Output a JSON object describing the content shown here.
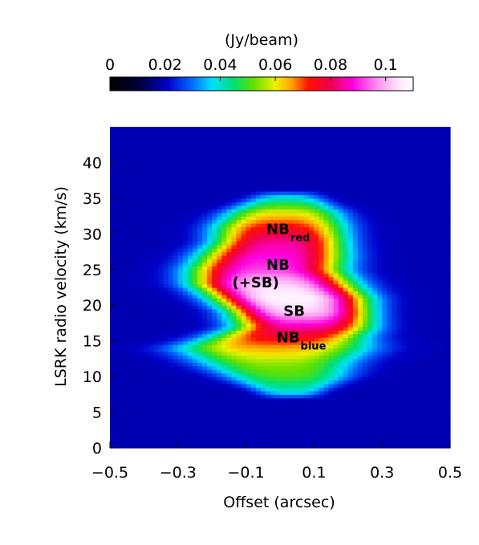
{
  "chart_data": {
    "type": "heatmap",
    "xlabel": "Offset (arcsec)",
    "ylabel": "LSRK radio velocity  (km/s)",
    "xlim": [
      -0.5,
      0.5
    ],
    "ylim": [
      0,
      45
    ],
    "x_ticks": [
      "−0.5",
      "−0.3",
      "−0.1",
      "0.1",
      "0.3",
      "0.5"
    ],
    "x_tick_values": [
      -0.5,
      -0.3,
      -0.1,
      0.1,
      0.3,
      0.5
    ],
    "y_ticks": [
      "0",
      "5",
      "10",
      "15",
      "20",
      "25",
      "30",
      "35",
      "40"
    ],
    "y_tick_values": [
      0,
      5,
      10,
      15,
      20,
      25,
      30,
      35,
      40
    ],
    "colorbar": {
      "title": "(Jy/beam)",
      "ticks": [
        "0",
        "0.02",
        "0.04",
        "0.06",
        "0.08",
        "0.1"
      ],
      "tick_values": [
        0,
        0.02,
        0.04,
        0.06,
        0.08,
        0.1
      ],
      "range": [
        0,
        0.11
      ],
      "colormap_stops": [
        {
          "v": 0.0,
          "color": "#000000"
        },
        {
          "v": 0.011,
          "color": "#00003c"
        },
        {
          "v": 0.021,
          "color": "#0000c8"
        },
        {
          "v": 0.029,
          "color": "#0060ff"
        },
        {
          "v": 0.037,
          "color": "#00e0ff"
        },
        {
          "v": 0.045,
          "color": "#00e070"
        },
        {
          "v": 0.052,
          "color": "#60e000"
        },
        {
          "v": 0.06,
          "color": "#f0f000"
        },
        {
          "v": 0.066,
          "color": "#ffa000"
        },
        {
          "v": 0.072,
          "color": "#ff1000"
        },
        {
          "v": 0.08,
          "color": "#f00050"
        },
        {
          "v": 0.088,
          "color": "#ff00e0"
        },
        {
          "v": 0.097,
          "color": "#ff90f0"
        },
        {
          "v": 0.105,
          "color": "#ffe8ff"
        },
        {
          "v": 0.11,
          "color": "#ffffff"
        }
      ]
    },
    "background_value": 0.0195,
    "emission_profile": [
      {
        "v": 8,
        "center": 0.03,
        "halfwidth": 0.04,
        "peak": 0.04
      },
      {
        "v": 10,
        "center": 0.02,
        "halfwidth": 0.12,
        "peak": 0.05
      },
      {
        "v": 12,
        "center": -0.01,
        "halfwidth": 0.17,
        "peak": 0.055
      },
      {
        "v": 14,
        "center": -0.02,
        "halfwidth": 0.22,
        "peak": 0.065
      },
      {
        "v": 15.5,
        "center": 0.02,
        "halfwidth": 0.17,
        "peak": 0.075
      },
      {
        "v": 17,
        "center": 0.07,
        "halfwidth": 0.14,
        "peak": 0.085
      },
      {
        "v": 19,
        "center": 0.06,
        "halfwidth": 0.14,
        "peak": 0.102
      },
      {
        "v": 21,
        "center": 0.03,
        "halfwidth": 0.16,
        "peak": 0.108
      },
      {
        "v": 23,
        "center": -0.02,
        "halfwidth": 0.17,
        "peak": 0.103
      },
      {
        "v": 25,
        "center": -0.04,
        "halfwidth": 0.16,
        "peak": 0.092
      },
      {
        "v": 27,
        "center": -0.02,
        "halfwidth": 0.15,
        "peak": 0.088
      },
      {
        "v": 29,
        "center": 0.0,
        "halfwidth": 0.13,
        "peak": 0.084
      },
      {
        "v": 31,
        "center": 0.0,
        "halfwidth": 0.13,
        "peak": 0.074
      },
      {
        "v": 33,
        "center": 0.01,
        "halfwidth": 0.11,
        "peak": 0.06
      },
      {
        "v": 35,
        "center": 0.02,
        "halfwidth": 0.05,
        "peak": 0.04
      }
    ],
    "annotations": [
      {
        "text": "NB",
        "sub": "red",
        "x": -0.04,
        "y": 30
      },
      {
        "text": "NB",
        "sub": "",
        "x": -0.04,
        "y": 25
      },
      {
        "text": "(+SB)",
        "sub": "",
        "x": -0.14,
        "y": 22.5
      },
      {
        "text": "SB",
        "sub": "",
        "x": 0.01,
        "y": 18.5
      },
      {
        "text": "NB",
        "sub": "blue",
        "x": -0.01,
        "y": 14.8
      }
    ]
  }
}
